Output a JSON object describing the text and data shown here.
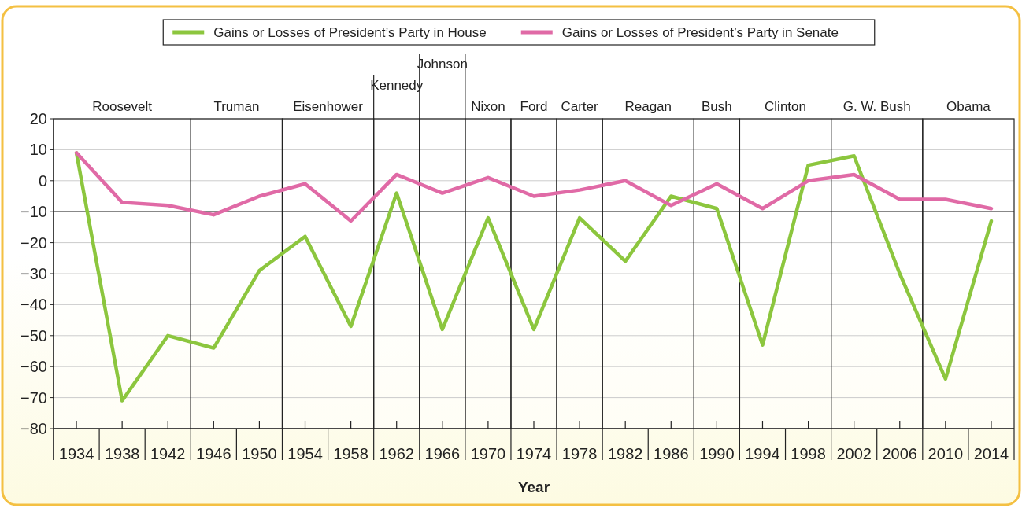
{
  "chart_data": {
    "type": "line",
    "xlabel": "Year",
    "x": [
      1934,
      1938,
      1942,
      1946,
      1950,
      1954,
      1958,
      1962,
      1966,
      1970,
      1974,
      1978,
      1982,
      1986,
      1990,
      1994,
      1998,
      2002,
      2006,
      2010,
      2014
    ],
    "series": [
      {
        "name": "Gains or Losses of President’s Party in House",
        "color": "#8cc63e",
        "values": [
          9,
          -71,
          -50,
          -54,
          -29,
          -18,
          -47,
          -4,
          -48,
          -12,
          -48,
          -12,
          -26,
          -5,
          -9,
          -53,
          5,
          8,
          -30,
          -64,
          -13
        ]
      },
      {
        "name": "Gains or Losses of President’s Party in Senate",
        "color": "#e06aa6",
        "values": [
          9,
          -7,
          -8,
          -11,
          -5,
          -1,
          -13,
          2,
          -4,
          1,
          -5,
          -3,
          0,
          -8,
          -1,
          -9,
          0,
          2,
          -6,
          -6,
          -9
        ]
      }
    ],
    "xlim": [
      1932,
      2016
    ],
    "xticks": [
      1934,
      1938,
      1942,
      1946,
      1950,
      1954,
      1958,
      1962,
      1966,
      1970,
      1974,
      1978,
      1982,
      1986,
      1990,
      1994,
      1998,
      2002,
      2006,
      2010,
      2014
    ],
    "ylim": [
      -80,
      20
    ],
    "yticks": [
      -80,
      -70,
      -60,
      -50,
      -40,
      -30,
      -20,
      -10,
      0,
      10,
      20
    ],
    "grid": "y",
    "legend": "top",
    "marker": "none",
    "line_style": "solid",
    "ref_lines": [
      {
        "axis": "y",
        "value": -10,
        "color": "#222222"
      }
    ],
    "bands": [
      {
        "axis": "x",
        "from": 1932,
        "to": 1944,
        "label": "Roosevelt",
        "color": "#ffffff"
      },
      {
        "axis": "x",
        "from": 1944,
        "to": 1952,
        "label": "Truman",
        "color": "#ffffff"
      },
      {
        "axis": "x",
        "from": 1952,
        "to": 1960,
        "label": "Eisenhower",
        "color": "#ffffff"
      },
      {
        "axis": "x",
        "from": 1960,
        "to": 1964,
        "label": "Kennedy",
        "color": "#ffffff"
      },
      {
        "axis": "x",
        "from": 1964,
        "to": 1968,
        "label": "Johnson",
        "color": "#ffffff"
      },
      {
        "axis": "x",
        "from": 1968,
        "to": 1972,
        "label": "Nixon",
        "color": "#ffffff"
      },
      {
        "axis": "x",
        "from": 1972,
        "to": 1976,
        "label": "Ford",
        "color": "#ffffff"
      },
      {
        "axis": "x",
        "from": 1976,
        "to": 1980,
        "label": "Carter",
        "color": "#ffffff"
      },
      {
        "axis": "x",
        "from": 1980,
        "to": 1988,
        "label": "Reagan",
        "color": "#ffffff"
      },
      {
        "axis": "x",
        "from": 1988,
        "to": 1992,
        "label": "Bush",
        "color": "#ffffff"
      },
      {
        "axis": "x",
        "from": 1992,
        "to": 2000,
        "label": "Clinton",
        "color": "#ffffff"
      },
      {
        "axis": "x",
        "from": 2000,
        "to": 2008,
        "label": "G. W. Bush",
        "color": "#ffffff"
      },
      {
        "axis": "x",
        "from": 2008,
        "to": 2016,
        "label": "Obama",
        "color": "#ffffff"
      }
    ]
  }
}
